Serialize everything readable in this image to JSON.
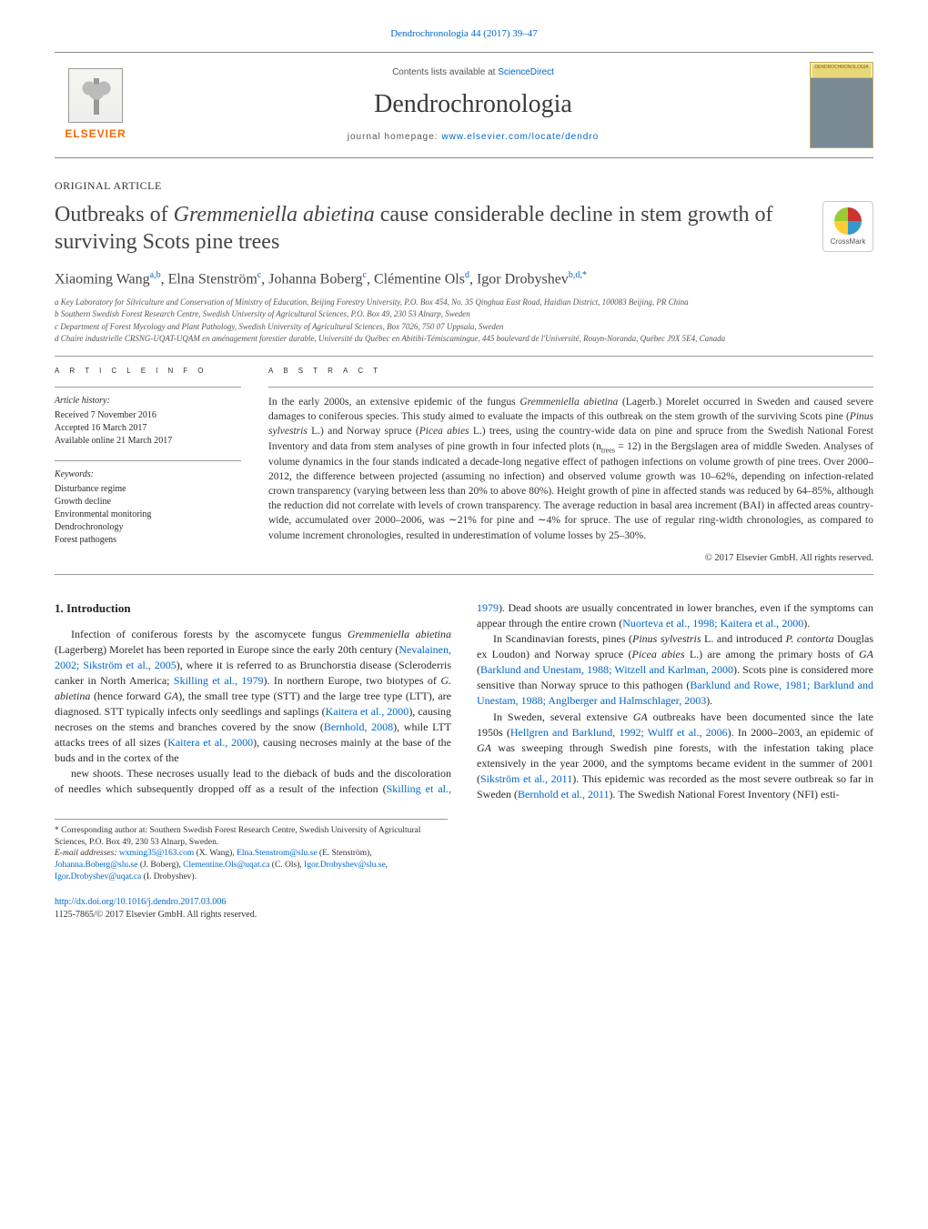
{
  "top_citation": "Dendrochronologia 44 (2017) 39–47",
  "masthead": {
    "contents_prefix": "Contents lists available at ",
    "contents_link": "ScienceDirect",
    "journal_name": "Dendrochronologia",
    "homepage_prefix": "journal homepage: ",
    "homepage_url": "www.elsevier.com/locate/dendro",
    "elsevier": "ELSEVIER",
    "cover_label": "DENDROCHRONOLOGIA"
  },
  "article_type": "ORIGINAL ARTICLE",
  "title_html": "Outbreaks of <em>Gremmeniella abietina</em> cause considerable decline in stem growth of surviving Scots pine trees",
  "crossmark": "CrossMark",
  "authors_html": "Xiaoming Wang<sup>a,b</sup>, Elna Stenström<sup>c</sup>, Johanna Boberg<sup>c</sup>, Clémentine Ols<sup>d</sup>, Igor Drobyshev<sup>b,d,*</sup>",
  "affiliations": [
    "a Key Laboratory for Silviculture and Conservation of Ministry of Education, Beijing Forestry University, P.O. Box 454, No. 35 Qinghua East Road, Haidian District, 100083 Beijing, PR China",
    "b Southern Swedish Forest Research Centre, Swedish University of Agricultural Sciences, P.O. Box 49, 230 53 Alnarp, Sweden",
    "c Department of Forest Mycology and Plant Pathology, Swedish University of Agricultural Sciences, Box 7026, 750 07 Uppsala, Sweden",
    "d Chaire industrielle CRSNG-UQAT-UQAM en aménagement forestier durable, Université du Québec en Abitibi-Témiscamingue, 445 boulevard de l'Université, Rouyn-Noranda, Québec J9X 5E4, Canada"
  ],
  "article_info": {
    "heading": "a r t i c l e   i n f o",
    "history_label": "Article history:",
    "history": [
      "Received 7 November 2016",
      "Accepted 16 March 2017",
      "Available online 21 March 2017"
    ],
    "keywords_label": "Keywords:",
    "keywords": [
      "Disturbance regime",
      "Growth decline",
      "Environmental monitoring",
      "Dendrochronology",
      "Forest pathogens"
    ]
  },
  "abstract": {
    "heading": "a b s t r a c t",
    "text_html": "In the early 2000s, an extensive epidemic of the fungus <em>Gremmeniella abietina</em> (Lagerb.) Morelet occurred in Sweden and caused severe damages to coniferous species. This study aimed to evaluate the impacts of this outbreak on the stem growth of the surviving Scots pine (<em>Pinus sylvestris</em> L.) and Norway spruce (<em>Picea abies</em> L.) trees, using the country-wide data on pine and spruce from the Swedish National Forest Inventory and data from stem analyses of pine growth in four infected plots (n<sub>trees</sub> = 12) in the Bergslagen area of middle Sweden. Analyses of volume dynamics in the four stands indicated a decade-long negative effect of pathogen infections on volume growth of pine trees. Over 2000–2012, the difference between projected (assuming no infection) and observed volume growth was 10–62%, depending on infection-related crown transparency (varying between less than 20% to above 80%). Height growth of pine in affected stands was reduced by 64–85%, although the reduction did not correlate with levels of crown transparency. The average reduction in basal area increment (BAI) in affected areas country-wide, accumulated over 2000–2006, was ∼21% for pine and ∼4% for spruce. The use of regular ring-width chronologies, as compared to volume increment chronologies, resulted in underestimation of volume losses by 25–30%.",
    "copyright": "© 2017 Elsevier GmbH. All rights reserved."
  },
  "intro": {
    "heading": "1. Introduction",
    "p1_html": "Infection of coniferous forests by the ascomycete fungus <em>Gremmeniella abietina</em> (Lagerberg) Morelet has been reported in Europe since the early 20th century (<a href=\"#\">Nevalainen, 2002; Sikström et al., 2005</a>), where it is referred to as Brunchorstia disease (Scleroderris canker in North America; <a href=\"#\">Skilling et al., 1979</a>). In northern Europe, two biotypes of <em>G. abietina</em> (hence forward <em>GA</em>), the small tree type (STT) and the large tree type (LTT), are diagnosed. STT typically infects only seedlings and saplings (<a href=\"#\">Kaitera et al., 2000</a>), causing necroses on the stems and branches covered by the snow (<a href=\"#\">Bernhold, 2008</a>), while LTT attacks trees of all sizes (<a href=\"#\">Kaitera et al., 2000</a>), causing necroses mainly at the base of the buds and in the cortex of the",
    "p2_html": "new shoots. These necroses usually lead to the dieback of buds and the discoloration of needles which subsequently dropped off as a result of the infection (<a href=\"#\">Skilling et al., 1979</a>). Dead shoots are usually concentrated in lower branches, even if the symptoms can appear through the entire crown (<a href=\"#\">Nuorteva et al., 1998; Kaitera et al., 2000</a>).",
    "p3_html": "In Scandinavian forests, pines (<em>Pinus sylvestris</em> L. and introduced <em>P. contorta</em> Douglas ex Loudon) and Norway spruce (<em>Picea abies</em> L.) are among the primary hosts of <em>GA</em> (<a href=\"#\">Barklund and Unestam, 1988; Witzell and Karlman, 2000</a>). Scots pine is considered more sensitive than Norway spruce to this pathogen (<a href=\"#\">Barklund and Rowe, 1981; Barklund and Unestam, 1988; Anglberger and Halmschlager, 2003</a>).",
    "p4_html": "In Sweden, several extensive <em>GA</em> outbreaks have been documented since the late 1950s (<a href=\"#\">Hellgren and Barklund, 1992; Wulff et al., 2006</a>). In 2000–2003, an epidemic of <em>GA</em> was sweeping through Swedish pine forests, with the infestation taking place extensively in the year 2000, and the symptoms became evident in the summer of 2001 (<a href=\"#\">Sikström et al., 2011</a>). This epidemic was recorded as the most severe outbreak so far in Sweden (<a href=\"#\">Bernhold et al., 2011</a>). The Swedish National Forest Inventory (NFI) esti-"
  },
  "footnotes": {
    "corr": "* Corresponding author at: Southern Swedish Forest Research Centre, Swedish University of Agricultural Sciences, P.O. Box 49, 230 53 Alnarp, Sweden.",
    "email_label": "E-mail addresses: ",
    "emails_html": "<a href=\"#\">wxming35@163.com</a> (X. Wang), <a href=\"#\">Elna.Stenstrom@slu.se</a> (E. Stenström), <a href=\"#\">Johanna.Boberg@slu.se</a> (J. Boberg), <a href=\"#\">Clementine.Ols@uqat.ca</a> (C. Ols), <a href=\"#\">Igor.Drobyshev@slu.se</a>, <a href=\"#\">Igor.Drobyshev@uqat.ca</a> (I. Drobyshev)."
  },
  "bottom": {
    "doi": "http://dx.doi.org/10.1016/j.dendro.2017.03.006",
    "issn_line": "1125-7865/© 2017 Elsevier GmbH. All rights reserved."
  },
  "colors": {
    "link": "#0066cc",
    "elsevier_orange": "#ff6600",
    "rule": "#999999",
    "text": "#2a2a2a"
  }
}
